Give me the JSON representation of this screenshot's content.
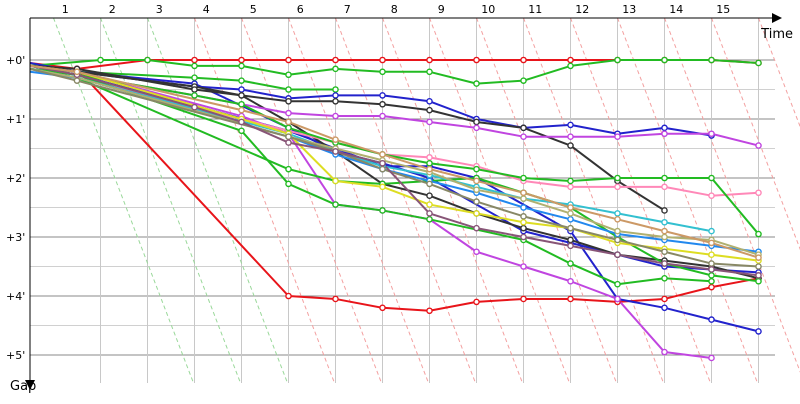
{
  "chart_data": {
    "type": "line",
    "title": "",
    "xlabel": "Time",
    "ylabel": "Gap",
    "x_ticks": [
      "1",
      "2",
      "3",
      "4",
      "5",
      "6",
      "7",
      "8",
      "9",
      "10",
      "11",
      "12",
      "13",
      "14",
      "15"
    ],
    "y_ticks": [
      "+0'",
      "+1'",
      "+2'",
      "+3'",
      "+4'",
      "+5'"
    ],
    "x_range": [
      0,
      15.5
    ],
    "y_range": [
      0,
      5.5
    ],
    "y_inverted": true,
    "grid": true,
    "legend": "none",
    "series": [
      {
        "color": "#e8141a",
        "points": [
          [
            0,
            0.05
          ],
          [
            1,
            0.15
          ],
          [
            2.5,
            0.0
          ],
          [
            3.5,
            0.0
          ],
          [
            4.5,
            0.0
          ],
          [
            5.5,
            0.0
          ],
          [
            6.5,
            0.0
          ],
          [
            7.5,
            0.0
          ],
          [
            8.5,
            0.0
          ],
          [
            9.5,
            0.0
          ],
          [
            10.5,
            0.0
          ],
          [
            11.5,
            0.0
          ],
          [
            12.5,
            0.0
          ],
          [
            13.5,
            0.0
          ],
          [
            14.5,
            0.0
          ],
          [
            15.5,
            0.05
          ]
        ]
      },
      {
        "color": "#e8141a",
        "points": [
          [
            0,
            0.1
          ],
          [
            1,
            0.15
          ],
          [
            5.5,
            4.0
          ],
          [
            6.5,
            4.05
          ],
          [
            7.5,
            4.2
          ],
          [
            8.5,
            4.25
          ],
          [
            9.5,
            4.1
          ],
          [
            10.5,
            4.05
          ],
          [
            11.5,
            4.05
          ],
          [
            12.5,
            4.1
          ],
          [
            13.5,
            4.05
          ],
          [
            14.5,
            3.85
          ],
          [
            15.5,
            3.7
          ]
        ]
      },
      {
        "color": "#22bb22",
        "points": [
          [
            0,
            0.1
          ],
          [
            1.5,
            0.0
          ],
          [
            2.5,
            0.0
          ],
          [
            3.5,
            0.1
          ],
          [
            4.5,
            0.1
          ],
          [
            5.5,
            0.25
          ],
          [
            6.5,
            0.15
          ],
          [
            7.5,
            0.2
          ],
          [
            8.5,
            0.2
          ],
          [
            9.5,
            0.4
          ],
          [
            10.5,
            0.35
          ],
          [
            11.5,
            0.1
          ],
          [
            12.5,
            0.0
          ],
          [
            13.5,
            0.0
          ],
          [
            14.5,
            0.0
          ],
          [
            15.5,
            0.05
          ]
        ]
      },
      {
        "color": "#22bb22",
        "points": [
          [
            0,
            0.1
          ],
          [
            1,
            0.2
          ],
          [
            3.5,
            0.3
          ],
          [
            4.5,
            0.35
          ],
          [
            5.5,
            0.5
          ],
          [
            6.5,
            0.5
          ]
        ]
      },
      {
        "color": "#2222cc",
        "points": [
          [
            0,
            0.05
          ],
          [
            1,
            0.2
          ],
          [
            3.5,
            0.45
          ],
          [
            4.5,
            0.5
          ],
          [
            5.5,
            0.65
          ],
          [
            6.5,
            0.6
          ],
          [
            7.5,
            0.6
          ],
          [
            8.5,
            0.7
          ],
          [
            9.5,
            1.0
          ],
          [
            10.5,
            1.15
          ],
          [
            11.5,
            1.1
          ],
          [
            12.5,
            1.25
          ],
          [
            13.5,
            1.15
          ],
          [
            14.5,
            1.28
          ]
        ]
      },
      {
        "color": "#2222cc",
        "points": [
          [
            0,
            0.1
          ],
          [
            1,
            0.2
          ],
          [
            3.5,
            0.4
          ],
          [
            5.5,
            1.15
          ],
          [
            6.5,
            1.55
          ],
          [
            7.5,
            1.75
          ],
          [
            8.5,
            2.0
          ],
          [
            10.5,
            2.9
          ],
          [
            11.5,
            3.1
          ],
          [
            12.5,
            3.3
          ],
          [
            13.5,
            3.5
          ],
          [
            14.5,
            3.55
          ],
          [
            15.5,
            3.6
          ]
        ]
      },
      {
        "color": "#2222cc",
        "points": [
          [
            0,
            0.15
          ],
          [
            1,
            0.25
          ],
          [
            5.5,
            1.2
          ],
          [
            6.5,
            1.5
          ],
          [
            7.5,
            1.8
          ],
          [
            8.5,
            1.8
          ],
          [
            9.5,
            2.0
          ],
          [
            11.5,
            2.9
          ],
          [
            12.5,
            4.05
          ],
          [
            13.5,
            4.2
          ],
          [
            14.5,
            4.4
          ],
          [
            15.5,
            4.6
          ]
        ]
      },
      {
        "color": "#333333",
        "points": [
          [
            0,
            0.1
          ],
          [
            1,
            0.2
          ],
          [
            3.5,
            0.45
          ],
          [
            4.5,
            0.6
          ],
          [
            5.5,
            0.7
          ],
          [
            6.5,
            0.7
          ],
          [
            7.5,
            0.75
          ],
          [
            8.5,
            0.85
          ],
          [
            9.5,
            1.05
          ],
          [
            10.5,
            1.15
          ],
          [
            11.5,
            1.45
          ],
          [
            12.5,
            2.05
          ],
          [
            13.5,
            2.55
          ]
        ]
      },
      {
        "color": "#333333",
        "points": [
          [
            0,
            0.1
          ],
          [
            1,
            0.15
          ],
          [
            3.5,
            0.5
          ],
          [
            4.5,
            0.6
          ],
          [
            5.5,
            1.05
          ],
          [
            6.5,
            1.55
          ],
          [
            7.5,
            2.1
          ],
          [
            8.5,
            2.3
          ],
          [
            9.5,
            2.6
          ],
          [
            10.5,
            2.85
          ],
          [
            11.5,
            3.05
          ],
          [
            12.5,
            3.3
          ],
          [
            13.5,
            3.4
          ],
          [
            14.5,
            3.5
          ],
          [
            15.5,
            3.7
          ]
        ]
      },
      {
        "color": "#c045e0",
        "points": [
          [
            0,
            0.1
          ],
          [
            1,
            0.25
          ],
          [
            3.5,
            0.6
          ],
          [
            5.5,
            0.9
          ],
          [
            6.5,
            0.95
          ],
          [
            7.5,
            0.95
          ],
          [
            8.5,
            1.05
          ],
          [
            9.5,
            1.15
          ],
          [
            10.5,
            1.3
          ],
          [
            11.5,
            1.3
          ],
          [
            12.5,
            1.3
          ],
          [
            13.5,
            1.25
          ],
          [
            14.5,
            1.25
          ],
          [
            15.5,
            1.45
          ]
        ]
      },
      {
        "color": "#c045e0",
        "points": [
          [
            0,
            0.1
          ],
          [
            1,
            0.2
          ],
          [
            4.5,
            0.95
          ],
          [
            5.5,
            1.25
          ],
          [
            6.5,
            2.45
          ],
          [
            7.5,
            2.55
          ],
          [
            8.5,
            2.7
          ],
          [
            9.5,
            3.25
          ],
          [
            10.5,
            3.5
          ],
          [
            11.5,
            3.75
          ],
          [
            12.5,
            4.05
          ],
          [
            13.5,
            4.95
          ],
          [
            14.5,
            5.05
          ]
        ]
      },
      {
        "color": "#ff88b8",
        "points": [
          [
            0,
            0.15
          ],
          [
            1,
            0.3
          ],
          [
            5.5,
            1.2
          ],
          [
            6.5,
            1.4
          ],
          [
            7.5,
            1.6
          ],
          [
            8.5,
            1.65
          ],
          [
            9.5,
            1.8
          ],
          [
            10.5,
            2.05
          ],
          [
            11.5,
            2.15
          ],
          [
            12.5,
            2.15
          ],
          [
            13.5,
            2.15
          ],
          [
            14.5,
            2.3
          ],
          [
            15.5,
            2.25
          ]
        ]
      },
      {
        "color": "#22bb22",
        "points": [
          [
            0,
            0.15
          ],
          [
            1,
            0.3
          ],
          [
            5.5,
            1.85
          ],
          [
            6.5,
            2.05
          ],
          [
            7.5,
            2.1
          ],
          [
            8.5,
            2.05
          ],
          [
            9.5,
            2.0
          ],
          [
            10.5,
            2.25
          ],
          [
            11.5,
            2.5
          ],
          [
            12.5,
            3.0
          ],
          [
            13.5,
            3.45
          ],
          [
            14.5,
            3.65
          ],
          [
            15.5,
            3.75
          ]
        ]
      },
      {
        "color": "#22bb22",
        "points": [
          [
            0,
            0.1
          ],
          [
            1,
            0.25
          ],
          [
            3.5,
            0.6
          ],
          [
            4.5,
            0.75
          ],
          [
            5.5,
            1.15
          ],
          [
            6.5,
            1.4
          ],
          [
            7.5,
            1.6
          ],
          [
            8.5,
            1.75
          ],
          [
            9.5,
            1.85
          ],
          [
            10.5,
            2.0
          ],
          [
            11.5,
            2.05
          ],
          [
            12.5,
            2.0
          ],
          [
            13.5,
            2.0
          ],
          [
            14.5,
            2.0
          ],
          [
            15.5,
            2.95
          ]
        ]
      },
      {
        "color": "#22bb22",
        "points": [
          [
            0,
            0.15
          ],
          [
            1,
            0.25
          ],
          [
            4.5,
            1.2
          ],
          [
            5.5,
            2.1
          ],
          [
            6.5,
            2.45
          ],
          [
            7.5,
            2.55
          ],
          [
            8.5,
            2.7
          ],
          [
            10.5,
            3.05
          ],
          [
            11.5,
            3.45
          ],
          [
            12.5,
            3.8
          ],
          [
            13.5,
            3.7
          ],
          [
            14.5,
            3.75
          ]
        ]
      },
      {
        "color": "#33c0d0",
        "points": [
          [
            0,
            0.15
          ],
          [
            1,
            0.3
          ],
          [
            5.5,
            1.25
          ],
          [
            6.5,
            1.55
          ],
          [
            7.5,
            1.8
          ],
          [
            8.5,
            1.95
          ],
          [
            9.5,
            2.15
          ],
          [
            10.5,
            2.35
          ],
          [
            11.5,
            2.45
          ],
          [
            12.5,
            2.6
          ],
          [
            13.5,
            2.75
          ],
          [
            14.5,
            2.9
          ]
        ]
      },
      {
        "color": "#2288ee",
        "points": [
          [
            0,
            0.2
          ],
          [
            1,
            0.3
          ],
          [
            5.5,
            1.3
          ],
          [
            6.5,
            1.6
          ],
          [
            7.5,
            1.85
          ],
          [
            8.5,
            2.05
          ],
          [
            9.5,
            2.25
          ],
          [
            10.5,
            2.5
          ],
          [
            11.5,
            2.7
          ],
          [
            12.5,
            2.95
          ],
          [
            13.5,
            3.05
          ],
          [
            14.5,
            3.15
          ],
          [
            15.5,
            3.25
          ]
        ]
      },
      {
        "color": "#dddd22",
        "points": [
          [
            0,
            0.1
          ],
          [
            1,
            0.2
          ],
          [
            4.5,
            1.0
          ],
          [
            5.5,
            1.25
          ],
          [
            6.5,
            2.05
          ],
          [
            7.5,
            2.15
          ],
          [
            8.5,
            2.45
          ],
          [
            9.5,
            2.6
          ],
          [
            10.5,
            2.75
          ],
          [
            11.5,
            2.85
          ],
          [
            12.5,
            3.1
          ],
          [
            13.5,
            3.2
          ],
          [
            14.5,
            3.3
          ],
          [
            15.5,
            3.4
          ]
        ]
      },
      {
        "color": "#b0b070",
        "points": [
          [
            0,
            0.15
          ],
          [
            1,
            0.3
          ],
          [
            5.5,
            1.3
          ],
          [
            6.5,
            1.5
          ],
          [
            7.5,
            1.7
          ],
          [
            8.5,
            1.9
          ],
          [
            9.5,
            2.2
          ],
          [
            10.5,
            2.35
          ],
          [
            11.5,
            2.6
          ],
          [
            12.5,
            2.9
          ],
          [
            13.5,
            3.0
          ],
          [
            14.5,
            3.05
          ],
          [
            15.5,
            3.3
          ]
        ]
      },
      {
        "color": "#888866",
        "points": [
          [
            0,
            0.15
          ],
          [
            1,
            0.35
          ],
          [
            5.5,
            1.3
          ],
          [
            6.5,
            1.55
          ],
          [
            7.5,
            1.85
          ],
          [
            8.5,
            2.1
          ],
          [
            9.5,
            2.4
          ],
          [
            10.5,
            2.65
          ],
          [
            11.5,
            2.85
          ],
          [
            12.5,
            3.05
          ],
          [
            13.5,
            3.25
          ],
          [
            14.5,
            3.45
          ],
          [
            15.5,
            3.5
          ]
        ]
      },
      {
        "color": "#885577",
        "points": [
          [
            0,
            0.1
          ],
          [
            1,
            0.25
          ],
          [
            3.5,
            0.8
          ],
          [
            4.5,
            1.05
          ],
          [
            5.5,
            1.4
          ],
          [
            6.5,
            1.55
          ],
          [
            7.5,
            1.75
          ],
          [
            8.5,
            2.6
          ],
          [
            9.5,
            2.85
          ],
          [
            10.5,
            3.0
          ],
          [
            11.5,
            3.15
          ],
          [
            12.5,
            3.3
          ],
          [
            13.5,
            3.45
          ],
          [
            14.5,
            3.55
          ],
          [
            15.5,
            3.65
          ]
        ]
      },
      {
        "color": "#cc9966",
        "points": [
          [
            0,
            0.1
          ],
          [
            1,
            0.2
          ],
          [
            4.5,
            0.85
          ],
          [
            5.5,
            1.05
          ],
          [
            6.5,
            1.35
          ],
          [
            7.5,
            1.6
          ],
          [
            8.5,
            1.85
          ],
          [
            9.5,
            2.05
          ],
          [
            10.5,
            2.25
          ],
          [
            11.5,
            2.5
          ],
          [
            12.5,
            2.7
          ],
          [
            13.5,
            2.9
          ],
          [
            14.5,
            3.1
          ],
          [
            15.5,
            3.35
          ]
        ]
      }
    ]
  }
}
